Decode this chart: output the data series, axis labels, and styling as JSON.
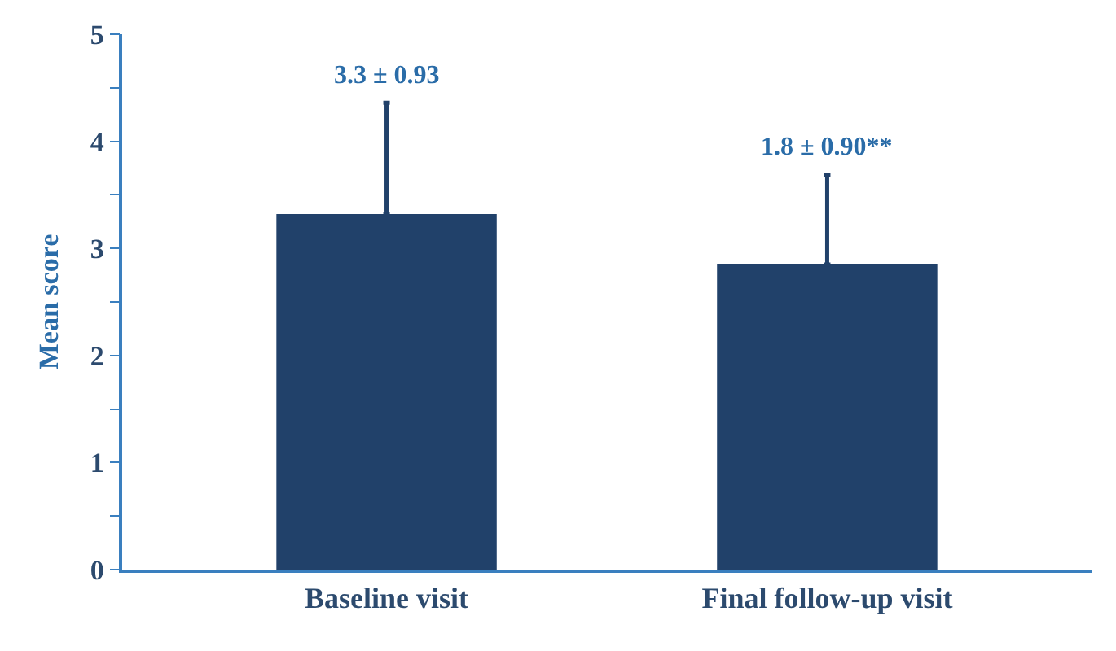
{
  "chart_data": {
    "type": "bar",
    "ylabel": "Mean score",
    "categories": [
      "Baseline visit",
      "Final follow-up visit"
    ],
    "values": [
      3.32,
      2.85
    ],
    "color": "#21416a",
    "errors": [
      [
        3.32,
        4.36
      ],
      [
        2.85,
        3.69
      ]
    ],
    "ylim": [
      0,
      5
    ],
    "yticks": [
      0,
      {
        "value": 0.5,
        "label": null
      },
      1,
      {
        "value": 1.5,
        "label": null
      },
      2,
      {
        "value": 2.5,
        "label": null
      },
      3,
      {
        "value": 3.5,
        "label": null
      },
      4,
      {
        "value": 4.5,
        "label": null
      },
      5
    ],
    "annotations": [
      "3.3 ± 0.93",
      "1.8 ± 0.90**"
    ]
  }
}
